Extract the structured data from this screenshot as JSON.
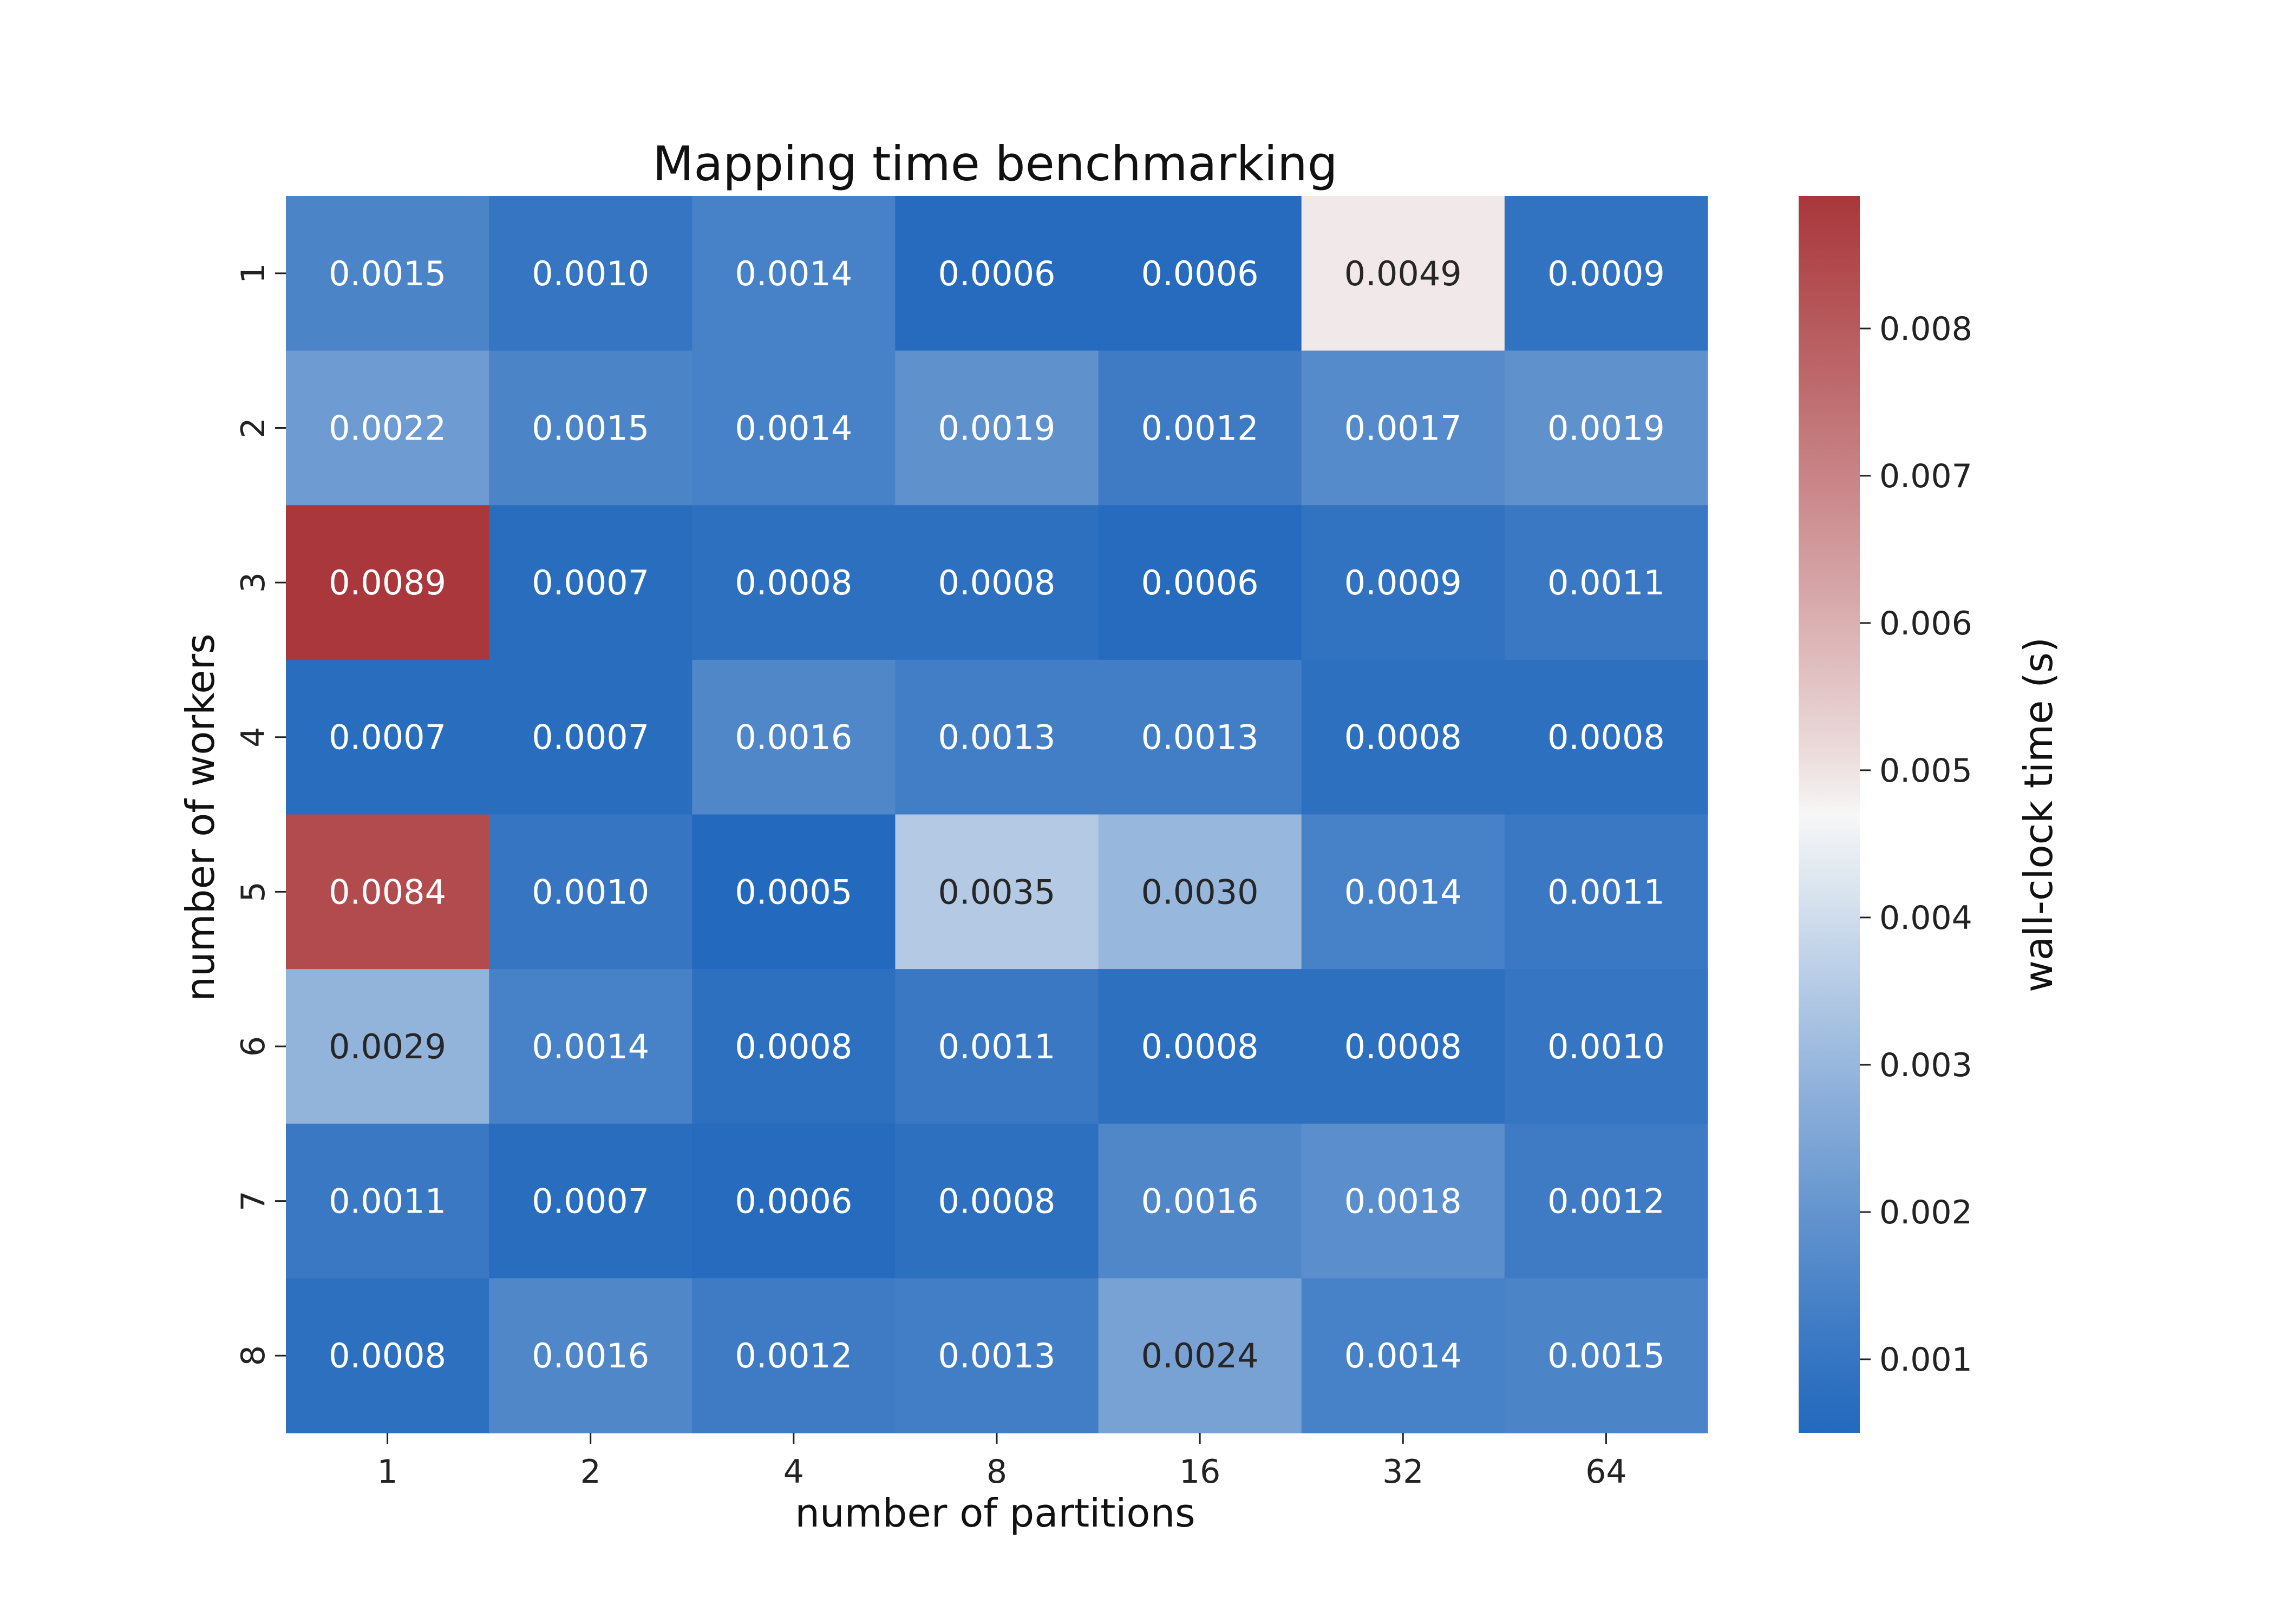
{
  "chart_data": {
    "type": "heatmap",
    "title": "Mapping time benchmarking",
    "xlabel": "number of partitions",
    "ylabel": "number of workers",
    "x_categories": [
      "1",
      "2",
      "4",
      "8",
      "16",
      "32",
      "64"
    ],
    "y_categories": [
      "1",
      "2",
      "3",
      "4",
      "5",
      "6",
      "7",
      "8"
    ],
    "values": [
      [
        0.0015,
        0.001,
        0.0014,
        0.0006,
        0.0006,
        0.0049,
        0.0009
      ],
      [
        0.0022,
        0.0015,
        0.0014,
        0.0019,
        0.0012,
        0.0017,
        0.0019
      ],
      [
        0.0089,
        0.0007,
        0.0008,
        0.0008,
        0.0006,
        0.0009,
        0.0011
      ],
      [
        0.0007,
        0.0007,
        0.0016,
        0.0013,
        0.0013,
        0.0008,
        0.0008
      ],
      [
        0.0084,
        0.001,
        0.0005,
        0.0035,
        0.003,
        0.0014,
        0.0011
      ],
      [
        0.0029,
        0.0014,
        0.0008,
        0.0011,
        0.0008,
        0.0008,
        0.001
      ],
      [
        0.0011,
        0.0007,
        0.0006,
        0.0008,
        0.0016,
        0.0018,
        0.0012
      ],
      [
        0.0008,
        0.0016,
        0.0012,
        0.0013,
        0.0024,
        0.0014,
        0.0015
      ]
    ],
    "value_labels": [
      [
        "0.0015",
        "0.0010",
        "0.0014",
        "0.0006",
        "0.0006",
        "0.0049",
        "0.0009"
      ],
      [
        "0.0022",
        "0.0015",
        "0.0014",
        "0.0019",
        "0.0012",
        "0.0017",
        "0.0019"
      ],
      [
        "0.0089",
        "0.0007",
        "0.0008",
        "0.0008",
        "0.0006",
        "0.0009",
        "0.0011"
      ],
      [
        "0.0007",
        "0.0007",
        "0.0016",
        "0.0013",
        "0.0013",
        "0.0008",
        "0.0008"
      ],
      [
        "0.0084",
        "0.0010",
        "0.0005",
        "0.0035",
        "0.0030",
        "0.0014",
        "0.0011"
      ],
      [
        "0.0029",
        "0.0014",
        "0.0008",
        "0.0011",
        "0.0008",
        "0.0008",
        "0.0010"
      ],
      [
        "0.0011",
        "0.0007",
        "0.0006",
        "0.0008",
        "0.0016",
        "0.0018",
        "0.0012"
      ],
      [
        "0.0008",
        "0.0016",
        "0.0012",
        "0.0013",
        "0.0024",
        "0.0014",
        "0.0015"
      ]
    ],
    "colorbar": {
      "label": "wall-clock time (s)",
      "vmin": 0.0005,
      "vmax": 0.0089,
      "ticks": [
        0.001,
        0.002,
        0.003,
        0.004,
        0.005,
        0.006,
        0.007,
        0.008
      ],
      "tick_labels": [
        "0.001",
        "0.002",
        "0.003",
        "0.004",
        "0.005",
        "0.006",
        "0.007",
        "0.008"
      ],
      "colormap": "vlag",
      "color_low": "#2369bd",
      "color_mid": "#f7f7f7",
      "color_high": "#a9373b",
      "center_value": 0.0047
    },
    "grid": false,
    "annotations": true
  }
}
